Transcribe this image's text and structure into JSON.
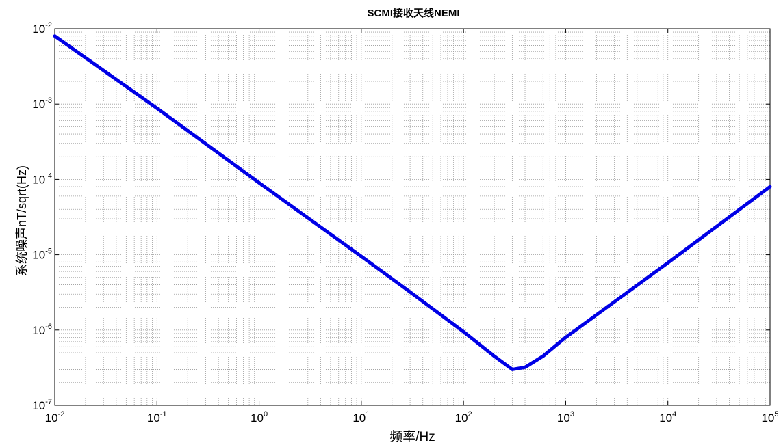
{
  "chart_data": {
    "type": "line",
    "title": "SCMI接收天线NEMI",
    "xlabel": "频率/Hz",
    "ylabel": "系统噪声nT/sqrt(Hz)",
    "xscale": "log",
    "yscale": "log",
    "xlim": [
      0.01,
      100000
    ],
    "ylim": [
      1e-07,
      0.01
    ],
    "grid": true,
    "x_ticks": [
      {
        "base": "10",
        "exp": "-2"
      },
      {
        "base": "10",
        "exp": "-1"
      },
      {
        "base": "10",
        "exp": "0"
      },
      {
        "base": "10",
        "exp": "1"
      },
      {
        "base": "10",
        "exp": "2"
      },
      {
        "base": "10",
        "exp": "3"
      },
      {
        "base": "10",
        "exp": "4"
      },
      {
        "base": "10",
        "exp": "5"
      }
    ],
    "y_ticks": [
      {
        "base": "10",
        "exp": "-7"
      },
      {
        "base": "10",
        "exp": "-6"
      },
      {
        "base": "10",
        "exp": "-5"
      },
      {
        "base": "10",
        "exp": "-4"
      },
      {
        "base": "10",
        "exp": "-3"
      },
      {
        "base": "10",
        "exp": "-2"
      }
    ],
    "series": [
      {
        "color": "#0000e6",
        "x": [
          0.01,
          0.1,
          1,
          10,
          30,
          100,
          200,
          300,
          400,
          600,
          1000,
          10000,
          100000
        ],
        "y": [
          0.008,
          0.00088,
          9e-05,
          9.5e-06,
          3.2e-06,
          9.5e-07,
          4.5e-07,
          3e-07,
          3.2e-07,
          4.5e-07,
          8e-07,
          7.8e-06,
          8e-05
        ]
      }
    ]
  }
}
